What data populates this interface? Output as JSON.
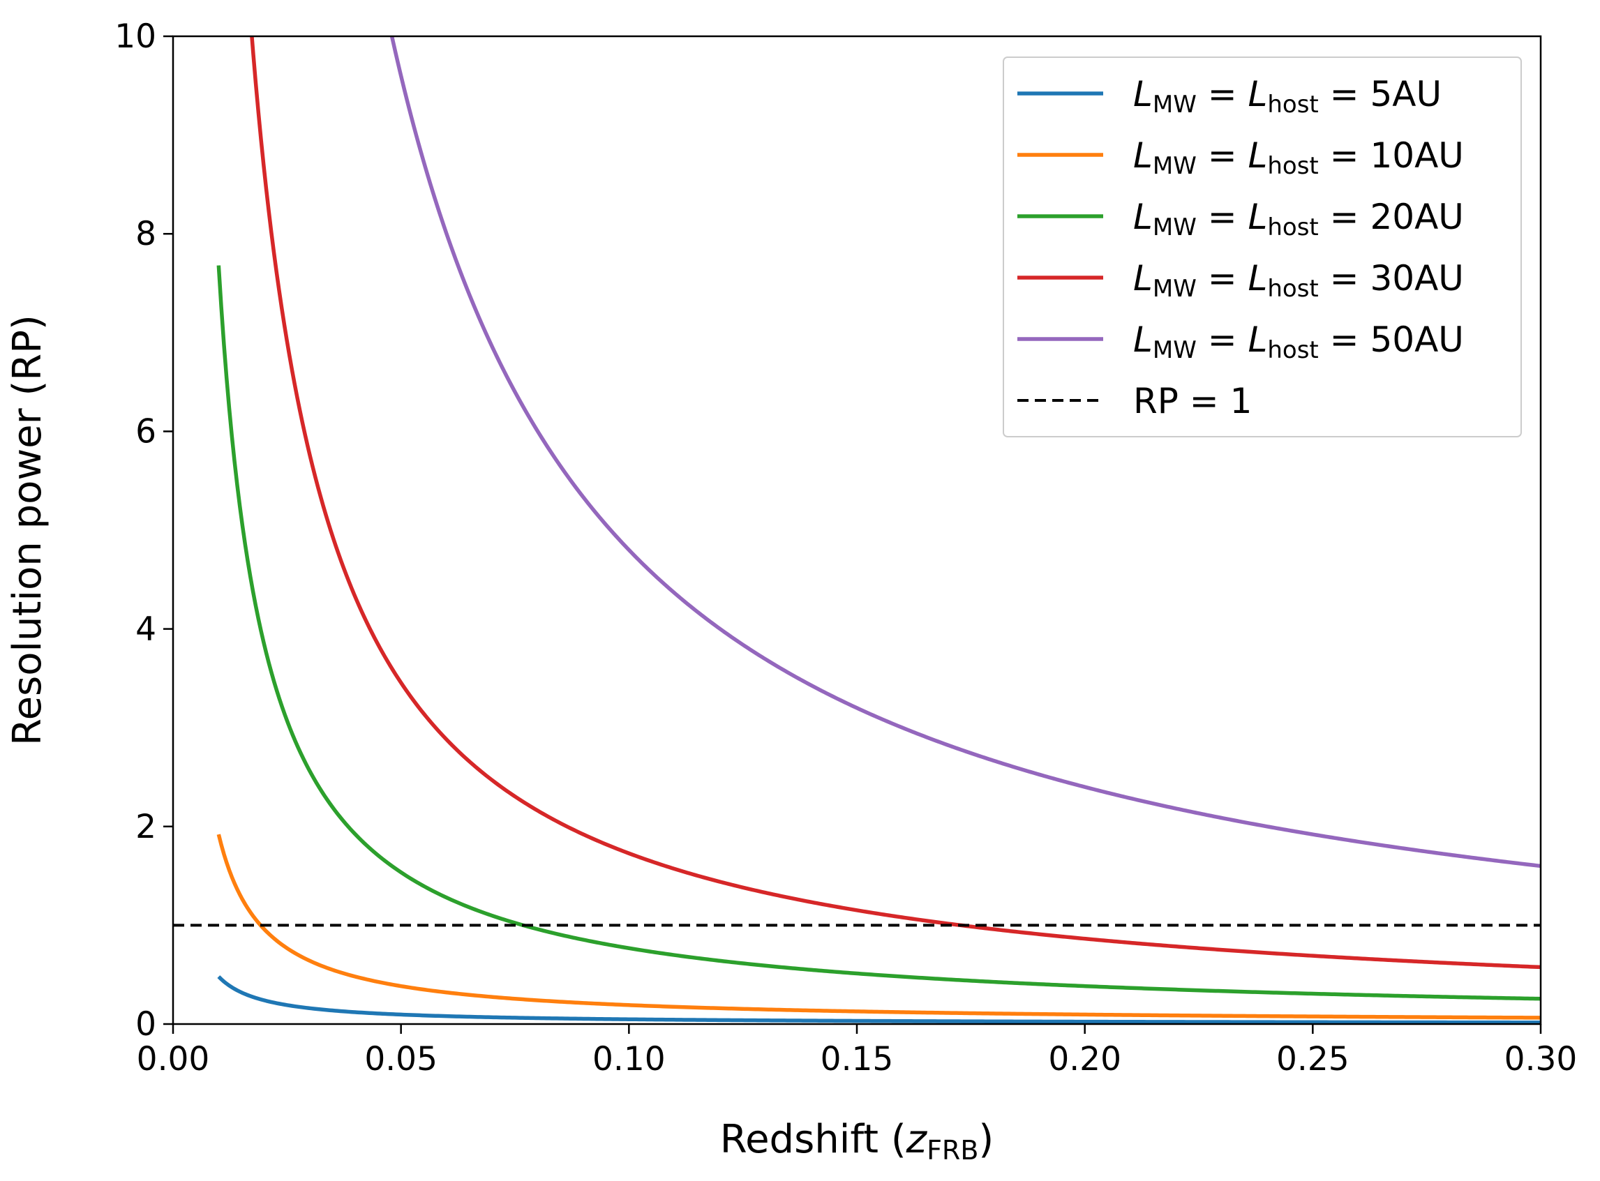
{
  "chart_data": {
    "type": "line",
    "xlabel": {
      "prefix": "Redshift (",
      "var": "z",
      "sub": "FRB",
      "suffix": ")"
    },
    "ylabel": "Resolution power (RP)",
    "xlim": [
      0.0,
      0.3
    ],
    "ylim": [
      0,
      10
    ],
    "xticks": [
      "0.00",
      "0.05",
      "0.10",
      "0.15",
      "0.20",
      "0.25",
      "0.30"
    ],
    "yticks": [
      "0",
      "2",
      "4",
      "6",
      "8",
      "10"
    ],
    "grid": false,
    "legend_position": "top-right",
    "x_start": 0.01,
    "x_end": 0.3,
    "series": [
      {
        "name": "L_MW = L_host = 5AU",
        "L_au": 5,
        "sub1": "MW",
        "sub2": "host",
        "value": "5AU",
        "color": "#1f77b4",
        "style": "solid",
        "sample_points": [
          [
            0.01,
            0.48
          ],
          [
            0.02,
            0.24
          ],
          [
            0.05,
            0.1
          ],
          [
            0.1,
            0.05
          ],
          [
            0.2,
            0.025
          ],
          [
            0.3,
            0.02
          ]
        ]
      },
      {
        "name": "L_MW = L_host = 10AU",
        "L_au": 10,
        "sub1": "MW",
        "sub2": "host",
        "value": "10AU",
        "color": "#ff7f0e",
        "style": "solid",
        "sample_points": [
          [
            0.01,
            1.92
          ],
          [
            0.02,
            0.96
          ],
          [
            0.05,
            0.38
          ],
          [
            0.1,
            0.19
          ],
          [
            0.2,
            0.1
          ],
          [
            0.3,
            0.07
          ]
        ]
      },
      {
        "name": "L_MW = L_host = 20AU",
        "L_au": 20,
        "sub1": "MW",
        "sub2": "host",
        "value": "20AU",
        "color": "#2ca02c",
        "style": "solid",
        "sample_points": [
          [
            0.01,
            7.68
          ],
          [
            0.02,
            3.84
          ],
          [
            0.05,
            1.55
          ],
          [
            0.1,
            0.79
          ],
          [
            0.2,
            0.41
          ],
          [
            0.3,
            0.29
          ]
        ]
      },
      {
        "name": "L_MW = L_host = 30AU",
        "L_au": 30,
        "sub1": "MW",
        "sub2": "host",
        "value": "30AU",
        "color": "#d62728",
        "style": "solid",
        "sample_points": [
          [
            0.018,
            10.0
          ],
          [
            0.05,
            3.5
          ],
          [
            0.1,
            1.8
          ],
          [
            0.2,
            0.95
          ],
          [
            0.3,
            0.68
          ]
        ]
      },
      {
        "name": "L_MW = L_host = 50AU",
        "L_au": 50,
        "sub1": "MW",
        "sub2": "host",
        "value": "50AU",
        "color": "#9467bd",
        "style": "solid",
        "sample_points": [
          [
            0.05,
            10.0
          ],
          [
            0.1,
            5.2
          ],
          [
            0.15,
            3.6
          ],
          [
            0.2,
            2.8
          ],
          [
            0.25,
            2.35
          ],
          [
            0.3,
            2.0
          ]
        ]
      },
      {
        "name": "RP = 1",
        "label": "RP = 1",
        "color": "#000000",
        "style": "dashed",
        "y_const": 1
      }
    ]
  }
}
